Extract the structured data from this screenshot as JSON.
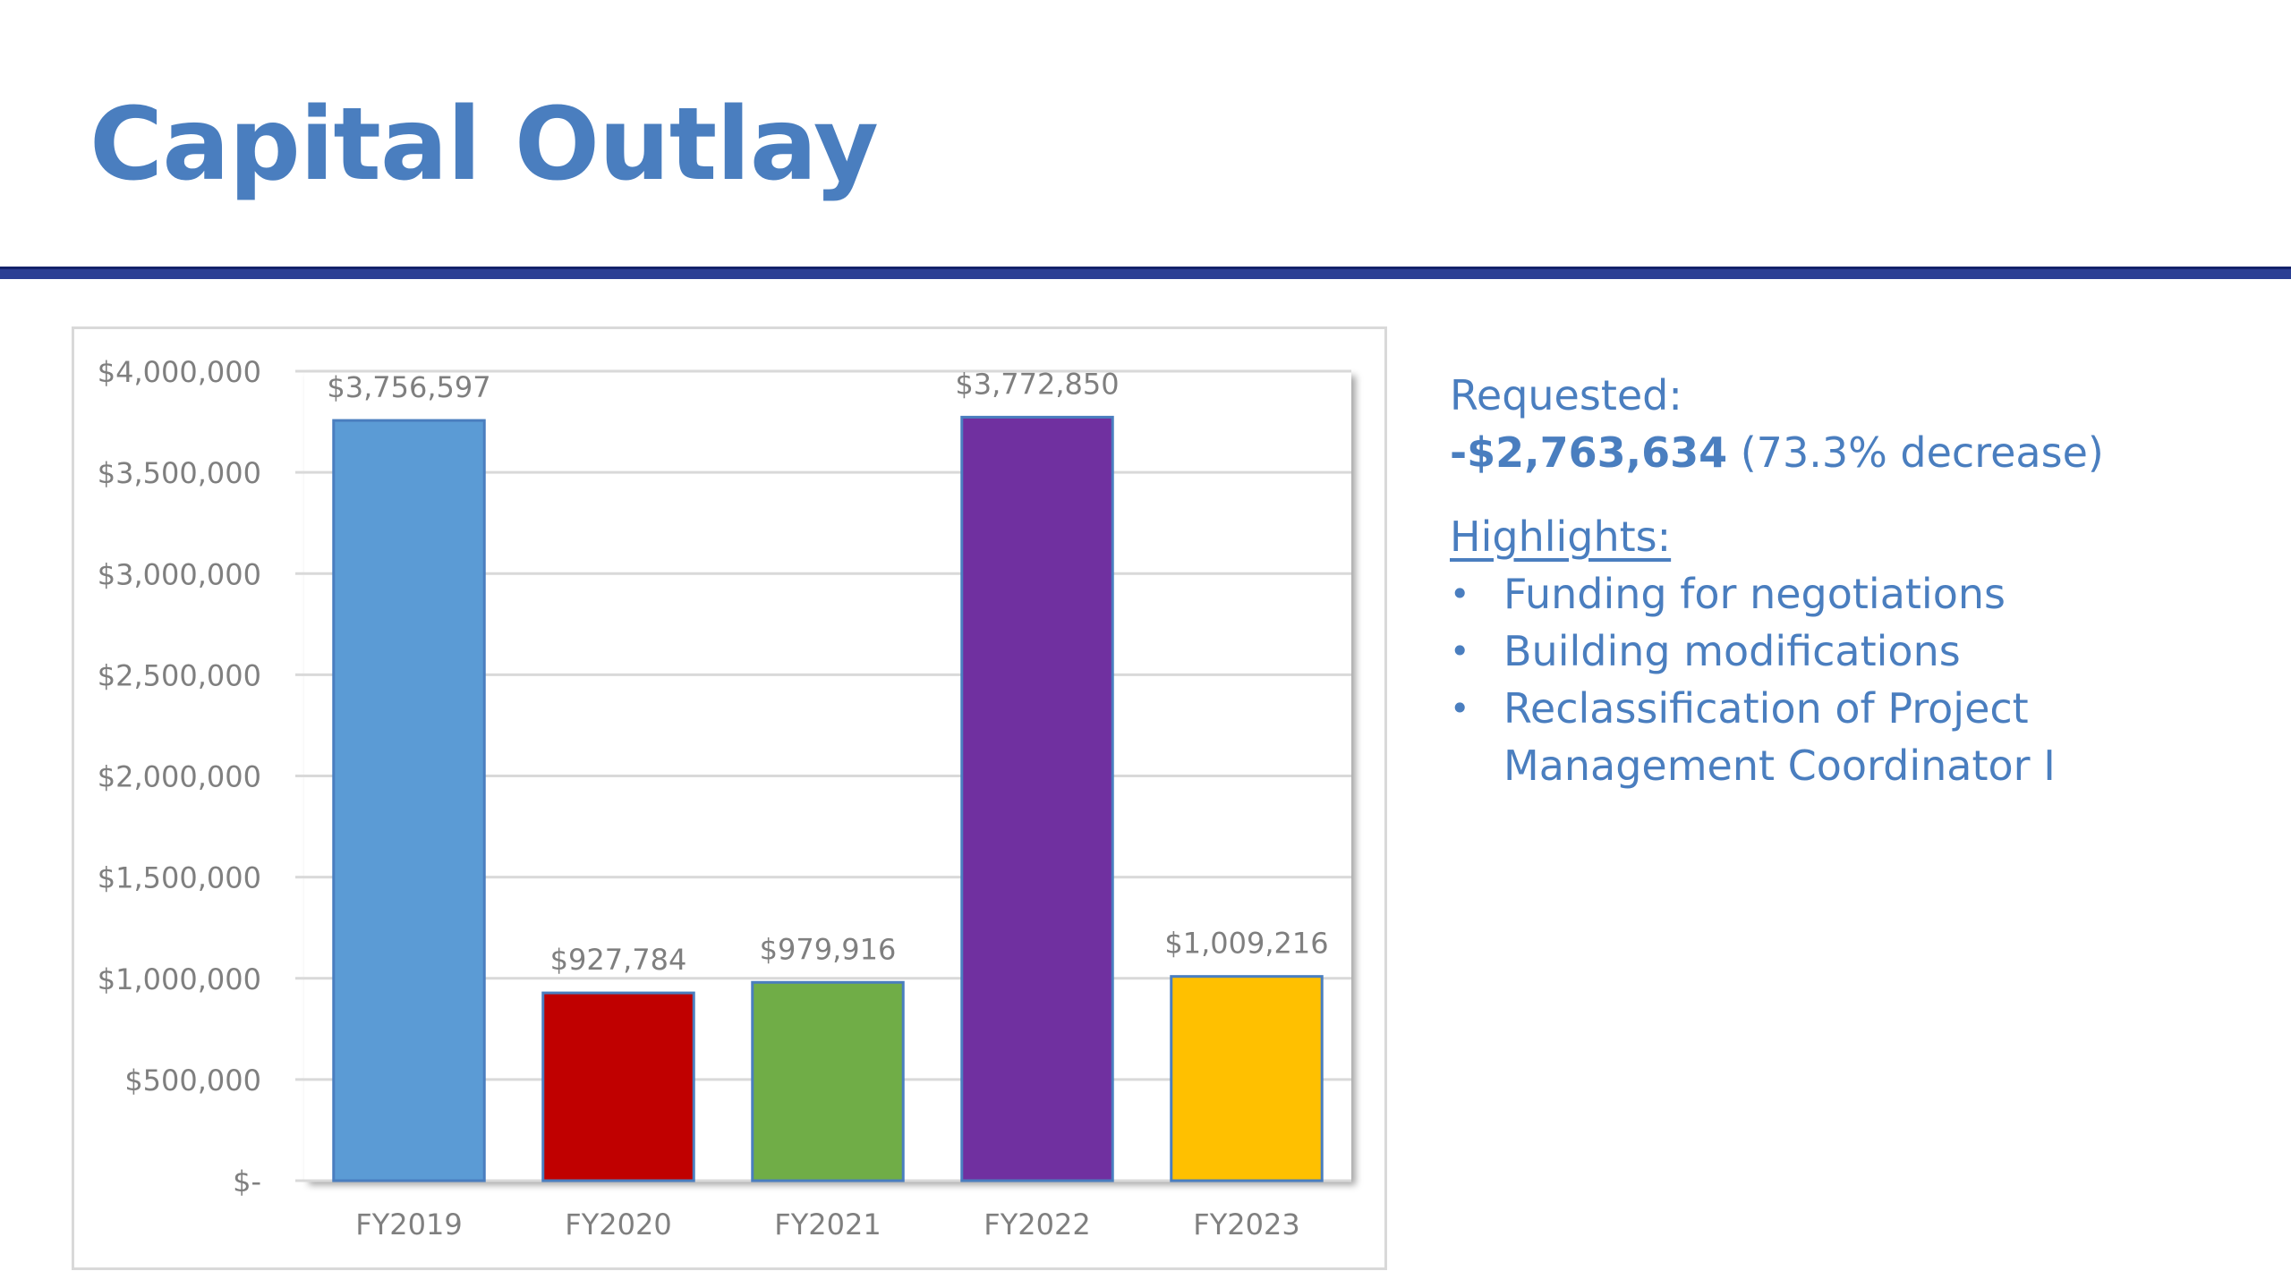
{
  "slide": {
    "title": "Capital Outlay"
  },
  "summary": {
    "requested_label": "Requested:",
    "requested_amount": "-$2,763,634",
    "requested_change": "(73.3% decrease)",
    "highlights_heading": "Highlights:",
    "highlights": [
      "Funding for negotiations",
      "Building modifications",
      "Reclassification of Project Management Coordinator I"
    ]
  },
  "chart_data": {
    "type": "bar",
    "title": "",
    "xlabel": "",
    "ylabel": "",
    "categories": [
      "FY2019",
      "FY2020",
      "FY2021",
      "FY2022",
      "FY2023"
    ],
    "values": [
      3756597,
      927784,
      979916,
      3772850,
      1009216
    ],
    "data_labels": [
      "$3,756,597",
      "$927,784",
      "$979,916",
      "$3,772,850",
      "$1,009,216"
    ],
    "bar_colors": [
      "#5b9bd5",
      "#c00000",
      "#70ad47",
      "#7030a0",
      "#ffc000"
    ],
    "ylim": [
      0,
      4000000
    ],
    "y_ticks": [
      0,
      500000,
      1000000,
      1500000,
      2000000,
      2500000,
      3000000,
      3500000,
      4000000
    ],
    "y_tick_labels": [
      "$-",
      "$500,000",
      "$1,000,000",
      "$1,500,000",
      "$2,000,000",
      "$2,500,000",
      "$3,000,000",
      "$3,500,000",
      "$4,000,000"
    ],
    "grid": true,
    "legend": "none"
  }
}
